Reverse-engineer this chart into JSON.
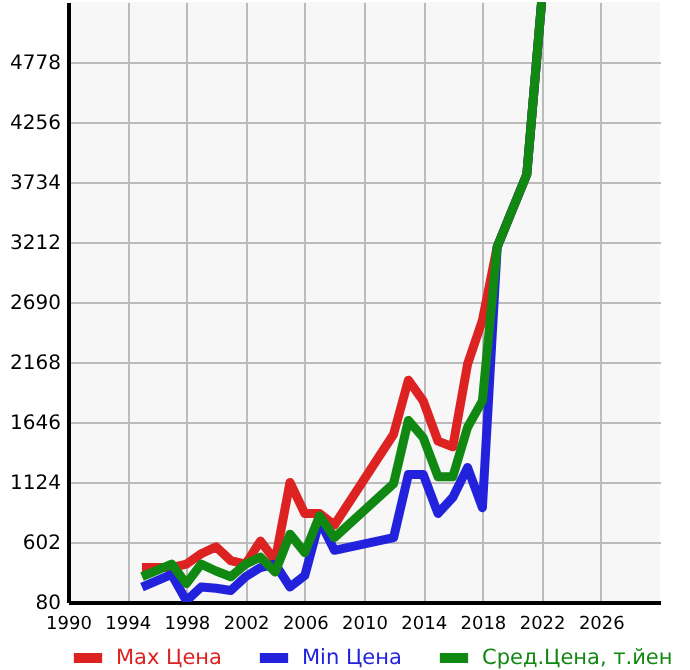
{
  "chart_data": {
    "type": "line",
    "x": [
      1995,
      1997,
      1998,
      1999,
      2000,
      2001,
      2002,
      2003,
      2004,
      2005,
      2006,
      2007,
      2008,
      2012,
      2013,
      2014,
      2015,
      2016,
      2017,
      2018,
      2019,
      2021,
      2022
    ],
    "series": [
      {
        "name": "Max Цена",
        "color": "#dd2222",
        "values": [
          380,
          380,
          410,
          500,
          560,
          440,
          410,
          610,
          440,
          1120,
          850,
          850,
          750,
          1540,
          2010,
          1830,
          1480,
          1430,
          2150,
          2530,
          3170,
          3800,
          5300
        ]
      },
      {
        "name": "Min Цена",
        "color": "#2222dd",
        "values": [
          210,
          320,
          90,
          210,
          200,
          180,
          300,
          380,
          410,
          210,
          310,
          790,
          530,
          640,
          1190,
          1190,
          850,
          990,
          1250,
          900,
          3170,
          3800,
          5300
        ]
      },
      {
        "name": "Сред.Цена, т.йен",
        "color": "#118811",
        "values": [
          300,
          410,
          240,
          410,
          350,
          300,
          410,
          470,
          340,
          670,
          510,
          830,
          640,
          1110,
          1660,
          1510,
          1170,
          1170,
          1600,
          1830,
          3170,
          3800,
          5300
        ]
      }
    ],
    "xlim": [
      1990,
      2030
    ],
    "xticks": [
      1990,
      1994,
      1998,
      2002,
      2006,
      2010,
      2014,
      2018,
      2022,
      2026
    ],
    "ylim": [
      80,
      5300
    ],
    "yticks": [
      80,
      602,
      1124,
      1646,
      2168,
      2690,
      3212,
      3734,
      4256,
      4778
    ],
    "grid": true,
    "legend": "bottom"
  }
}
